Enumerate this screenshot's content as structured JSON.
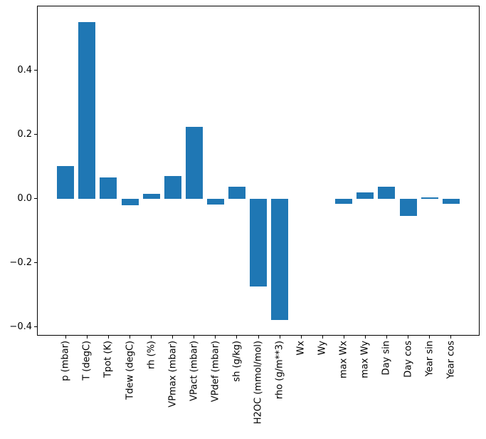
{
  "chart_data": {
    "type": "bar",
    "title": "",
    "xlabel": "",
    "ylabel": "",
    "categories": [
      "p (mbar)",
      "T (degC)",
      "Tpot (K)",
      "Tdew (degC)",
      "rh (%)",
      "VPmax (mbar)",
      "VPact (mbar)",
      "VPdef (mbar)",
      "sh (g/kg)",
      "H2OC (mmol/mol)",
      "rho (g/m**3)",
      "Wx",
      "Wy",
      "max Wx",
      "max Wy",
      "Day sin",
      "Day cos",
      "Year sin",
      "Year cos"
    ],
    "values": [
      0.102,
      0.551,
      0.067,
      -0.02,
      0.015,
      0.071,
      0.225,
      -0.019,
      0.037,
      -0.274,
      -0.379,
      0.0,
      0.0,
      -0.016,
      0.019,
      0.038,
      -0.054,
      0.004,
      -0.016
    ],
    "bar_color": "#1f77b4",
    "bar_width": 0.8,
    "ylim": [
      -0.427,
      0.602
    ],
    "xlim": [
      -1.34,
      19.34
    ],
    "yticks": [
      0.4,
      0.2,
      0.0,
      -0.2,
      -0.4
    ],
    "ytick_labels": [
      "0.4",
      "0.2",
      "0.0",
      "−0.2",
      "−0.4"
    ],
    "x_tick_rotation": 90,
    "grid": false,
    "legend": "none",
    "background_color": "#ffffff",
    "spine_color": "#000000"
  }
}
